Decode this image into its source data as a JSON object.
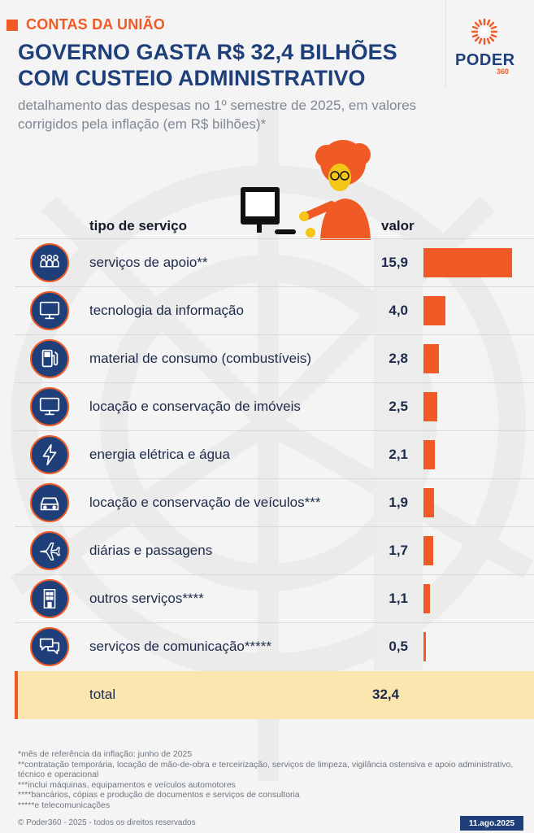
{
  "header": {
    "kicker": "CONTAS DA UNIÃO",
    "title": "GOVERNO GASTA R$ 32,4 BILHÕES COM CUSTEIO ADMINISTRATIVO",
    "subtitle": "detalhamento das despesas no 1º semestre de 2025, em valores corrigidos pela inflação (em R$ bilhões)*",
    "logo_word": "PODER",
    "logo_num": "360"
  },
  "columns": {
    "label": "tipo de serviço",
    "value": "valor"
  },
  "chart_data": {
    "type": "bar",
    "orientation": "horizontal",
    "xlabel": "tipo de serviço",
    "ylabel": "valor",
    "categories": [
      "serviços de apoio**",
      "tecnologia da informação",
      "material de consumo (combustíveis)",
      "locação e conservação de imóveis",
      "energia elétrica e água",
      "locação e conservação de veículos***",
      "diárias e passagens",
      "outros serviços****",
      "serviços de comunicação*****"
    ],
    "values": [
      15.9,
      4.0,
      2.8,
      2.5,
      2.1,
      1.9,
      1.7,
      1.1,
      0.5
    ],
    "value_labels": [
      "15,9",
      "4,0",
      "2,8",
      "2,5",
      "2,1",
      "1,9",
      "1,7",
      "1,1",
      "0,5"
    ],
    "icons": [
      "people-icon",
      "monitor-icon",
      "fuel-pump-icon",
      "monitor-icon",
      "lightning-icon",
      "car-icon",
      "airplane-icon",
      "building-icon",
      "chat-icon"
    ],
    "total_label": "total",
    "total_value": "32,4",
    "bar_color": "#f05a24"
  },
  "notes": [
    "*mês de referência da inflação: junho de 2025",
    "**contratação temporária, locação de mão-de-obra e terceirização, serviços de limpeza, vigilância ostensiva e apoio administrativo, técnico e operacional",
    "***inclui máquinas, equipamentos e veículos automotores",
    "****bancários, cópias e produção de documentos e serviços de consultoria",
    "*****e telecomunicações"
  ],
  "footer": {
    "copyright": "© Poder360 - 2025 - todos os direitos reservados",
    "date": "11.ago.2025"
  },
  "colors": {
    "accent": "#f05a24",
    "navy": "#1f3f7a",
    "total_bg": "#fbe6b0"
  }
}
